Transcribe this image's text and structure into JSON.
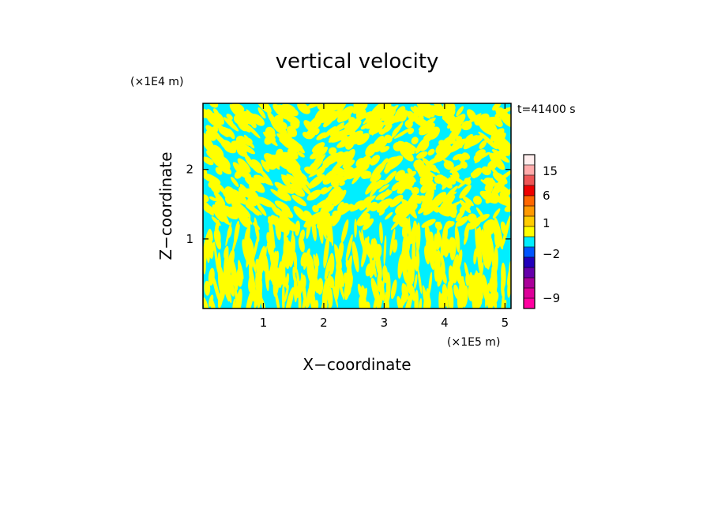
{
  "chart_data": {
    "type": "heatmap",
    "title": "vertical velocity",
    "xlabel": "X−coordinate",
    "ylabel": "Z−coordinate",
    "x_unit": "(×1E5 m)",
    "y_unit": "(×1E4 m)",
    "time_label": "t=41400 s",
    "xlim": [
      0,
      5.1
    ],
    "ylim": [
      0,
      2.95
    ],
    "x_ticks": [
      1,
      2,
      3,
      4,
      5
    ],
    "x_tick_labels": [
      "1",
      "2",
      "3",
      "4",
      "5"
    ],
    "y_ticks": [
      1,
      2
    ],
    "y_tick_labels": [
      "1",
      "2"
    ],
    "field_colors": {
      "positive": "#ffff00",
      "negative": "#00eeff"
    },
    "colorbar": {
      "bands": [
        {
          "color": "#ff00a0"
        },
        {
          "color": "#dd0099"
        },
        {
          "color": "#aa0099"
        },
        {
          "color": "#6600aa"
        },
        {
          "color": "#2200bb"
        },
        {
          "color": "#0055ff"
        },
        {
          "color": "#00eeff"
        },
        {
          "color": "#ffff00"
        },
        {
          "color": "#ffcc00"
        },
        {
          "color": "#ff9900"
        },
        {
          "color": "#ff6600"
        },
        {
          "color": "#ee0000"
        },
        {
          "color": "#ee5555"
        },
        {
          "color": "#ffaaaa"
        },
        {
          "color": "#ffeeee"
        }
      ],
      "tick_labels": [
        {
          "label": "−9",
          "band": 1
        },
        {
          "label": "−2",
          "band": 5.3
        },
        {
          "label": "1",
          "band": 8.3
        },
        {
          "label": "6",
          "band": 11
        },
        {
          "label": "15",
          "band": 13.4
        }
      ]
    }
  }
}
